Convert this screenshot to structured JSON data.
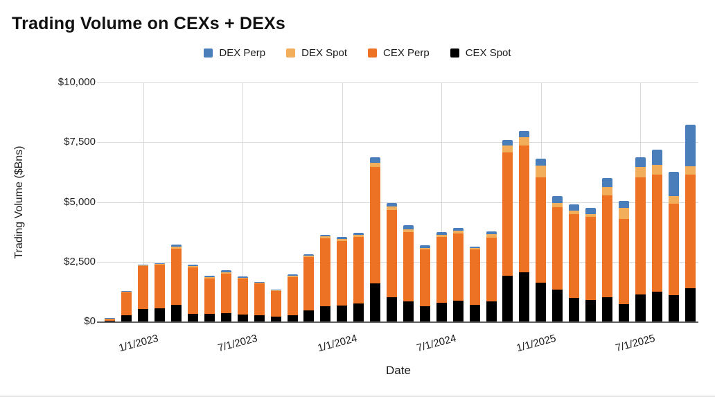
{
  "title": "Trading Volume on CEXs + DEXs",
  "legend": [
    {
      "label": "DEX Perp",
      "color": "#4a7ebb"
    },
    {
      "label": "DEX Spot",
      "color": "#f3ae5c"
    },
    {
      "label": "CEX Perp",
      "color": "#ed7224"
    },
    {
      "label": "CEX Spot",
      "color": "#000000"
    }
  ],
  "chart_data": {
    "type": "bar",
    "stacked": true,
    "title": "Trading Volume on CEXs + DEXs",
    "xlabel": "Date",
    "ylabel": "Trading Volume ($Bns)",
    "ylim": [
      0,
      10000
    ],
    "grid": true,
    "legend_position": "top-center",
    "yticks": [
      {
        "value": 0,
        "label": "$0"
      },
      {
        "value": 2500,
        "label": "$2,500"
      },
      {
        "value": 5000,
        "label": "$5,000"
      },
      {
        "value": 7500,
        "label": "$7,500"
      },
      {
        "value": 10000,
        "label": "$10,000"
      }
    ],
    "categories": [
      "11/1/2022",
      "12/1/2022",
      "1/1/2023",
      "2/1/2023",
      "3/1/2023",
      "4/1/2023",
      "5/1/2023",
      "6/1/2023",
      "7/1/2023",
      "8/1/2023",
      "9/1/2023",
      "10/1/2023",
      "11/1/2023",
      "12/1/2023",
      "1/1/2024",
      "2/1/2024",
      "3/1/2024",
      "4/1/2024",
      "5/1/2024",
      "6/1/2024",
      "7/1/2024",
      "8/1/2024",
      "9/1/2024",
      "10/1/2024",
      "11/1/2024",
      "12/1/2024",
      "1/1/2025",
      "2/1/2025",
      "3/1/2025",
      "4/1/2025",
      "5/1/2025",
      "6/1/2025",
      "7/1/2025",
      "8/1/2025",
      "9/1/2025",
      "10/1/2025"
    ],
    "xticks": [
      {
        "index": 2,
        "label": "1/1/2023"
      },
      {
        "index": 8,
        "label": "7/1/2023"
      },
      {
        "index": 14,
        "label": "1/1/2024"
      },
      {
        "index": 20,
        "label": "7/1/2024"
      },
      {
        "index": 26,
        "label": "1/1/2025"
      },
      {
        "index": 32,
        "label": "7/1/2025"
      }
    ],
    "series": [
      {
        "name": "CEX Spot",
        "color": "#000000",
        "values": [
          15,
          275,
          515,
          565,
          690,
          330,
          310,
          360,
          300,
          255,
          190,
          255,
          475,
          640,
          670,
          750,
          1585,
          1025,
          835,
          640,
          785,
          860,
          695,
          840,
          1925,
          2070,
          1635,
          1345,
          980,
          885,
          1005,
          720,
          1130,
          1250,
          1105,
          1390
        ]
      },
      {
        "name": "CEX Perp",
        "color": "#ed7224",
        "values": [
          65,
          930,
          1790,
          1810,
          2340,
          1930,
          1500,
          1650,
          1490,
          1330,
          1080,
          1610,
          2230,
          2835,
          2690,
          2775,
          4870,
          3650,
          2895,
          2365,
          2750,
          2815,
          2310,
          2675,
          5160,
          5305,
          4405,
          3425,
          3500,
          3480,
          4265,
          3565,
          4890,
          4890,
          3810,
          4745
        ]
      },
      {
        "name": "DEX Spot",
        "color": "#f3ae5c",
        "values": [
          5,
          15,
          30,
          40,
          115,
          60,
          55,
          60,
          50,
          25,
          25,
          50,
          60,
          80,
          95,
          85,
          195,
          145,
          125,
          60,
          80,
          125,
          55,
          145,
          270,
          340,
          490,
          190,
          145,
          115,
          365,
          465,
          435,
          415,
          340,
          365
        ]
      },
      {
        "name": "DEX Perp",
        "color": "#4a7ebb",
        "values": [
          5,
          10,
          15,
          20,
          80,
          55,
          55,
          75,
          55,
          25,
          20,
          55,
          55,
          75,
          80,
          90,
          225,
          145,
          165,
          115,
          115,
          100,
          70,
          115,
          245,
          260,
          280,
          290,
          260,
          270,
          370,
          290,
          420,
          645,
          1010,
          1735
        ]
      }
    ]
  }
}
